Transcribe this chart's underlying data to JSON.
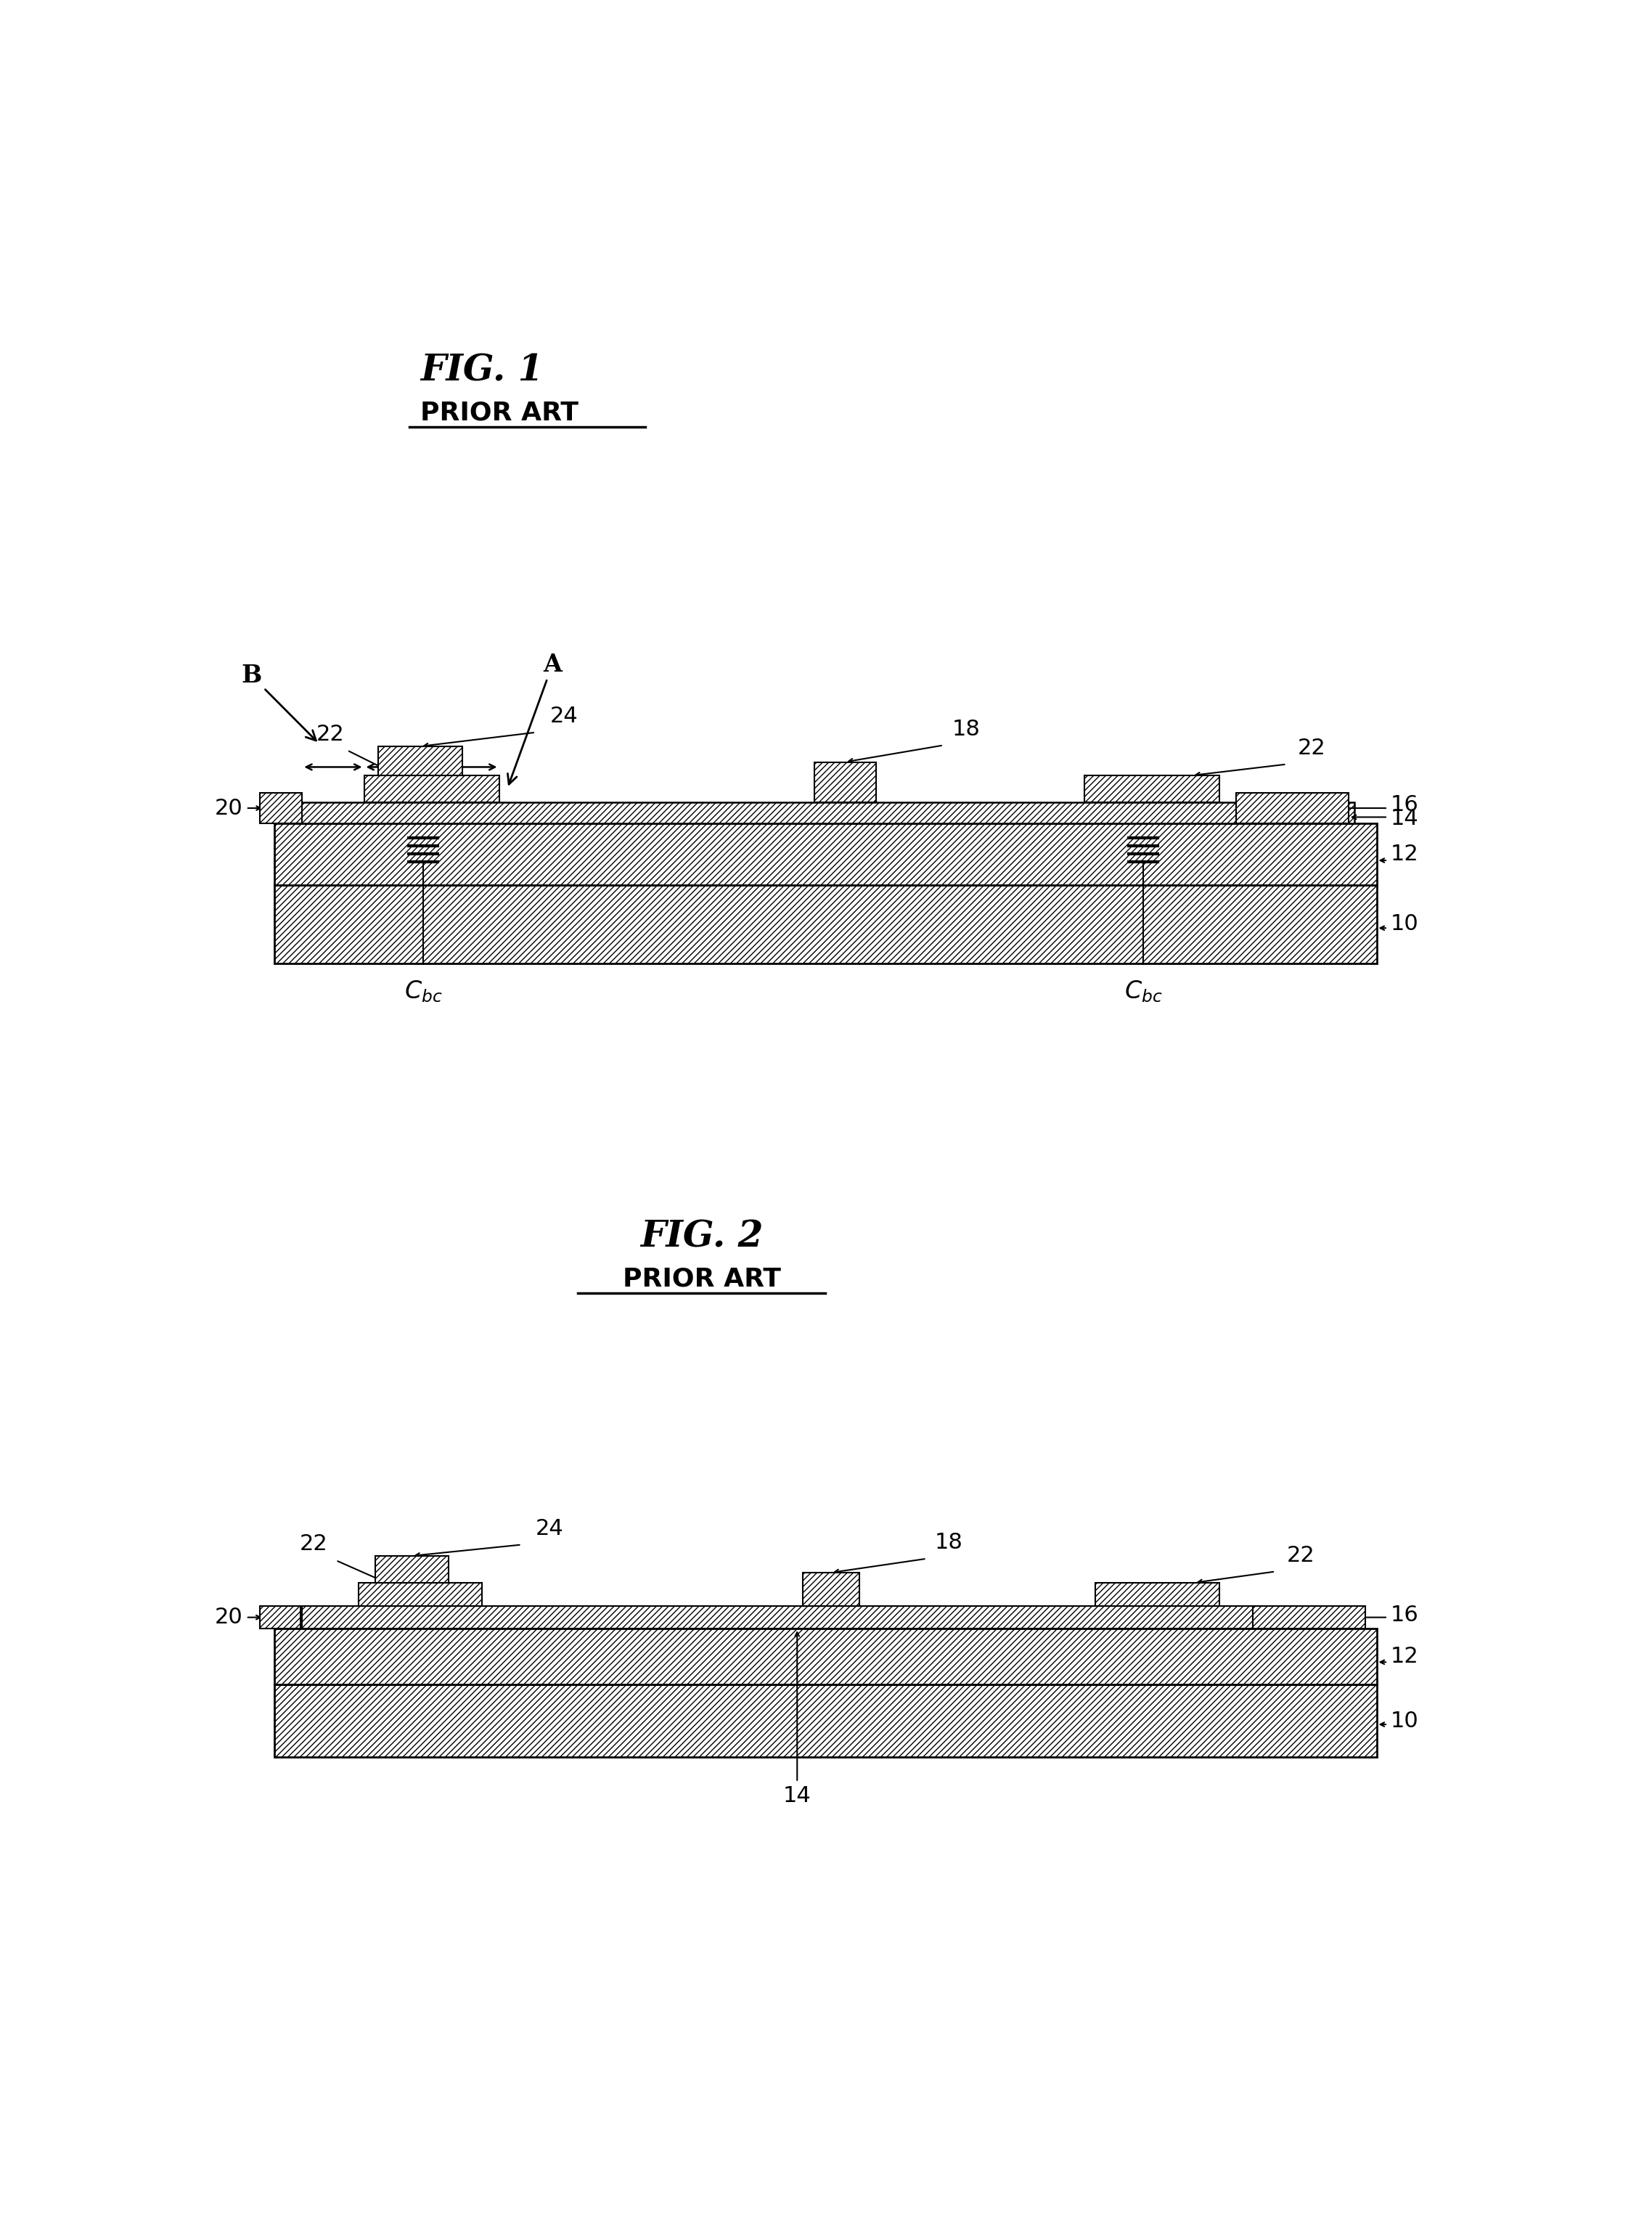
{
  "fig_width": 22.76,
  "fig_height": 30.48,
  "bg_color": "#ffffff",
  "fig1_title": "FIG. 1",
  "fig1_subtitle": "PRIOR ART",
  "fig2_title": "FIG. 2",
  "fig2_subtitle": "PRIOR ART",
  "outline_color": "#000000",
  "fill_color": "#ffffff",
  "label_fontsize": 22,
  "title_fontsize": 36,
  "subtitle_fontsize": 26
}
